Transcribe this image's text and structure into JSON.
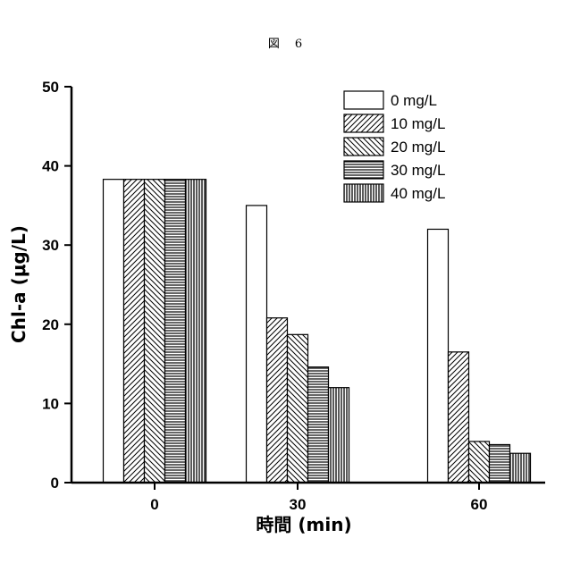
{
  "figure_label": "図　6",
  "chart_data": {
    "type": "bar",
    "categories": [
      "0",
      "30",
      "60"
    ],
    "xlabel": "時間 (min)",
    "ylabel": "Chl-a (μg/L)",
    "ylim": [
      0,
      50
    ],
    "yticks": [
      0,
      10,
      20,
      30,
      40,
      50
    ],
    "legend_position": "top-right",
    "series": [
      {
        "name": "0 mg/L",
        "pattern": "none",
        "values": [
          38.3,
          35.0,
          32.0
        ]
      },
      {
        "name": "10 mg/L",
        "pattern": "diag-up",
        "values": [
          38.3,
          20.8,
          16.5
        ]
      },
      {
        "name": "20 mg/L",
        "pattern": "diag-down",
        "values": [
          38.3,
          18.7,
          5.2
        ]
      },
      {
        "name": "30 mg/L",
        "pattern": "horizontal",
        "values": [
          38.3,
          14.6,
          4.8
        ]
      },
      {
        "name": "40 mg/L",
        "pattern": "vertical",
        "values": [
          38.3,
          12.0,
          3.7
        ]
      }
    ]
  }
}
